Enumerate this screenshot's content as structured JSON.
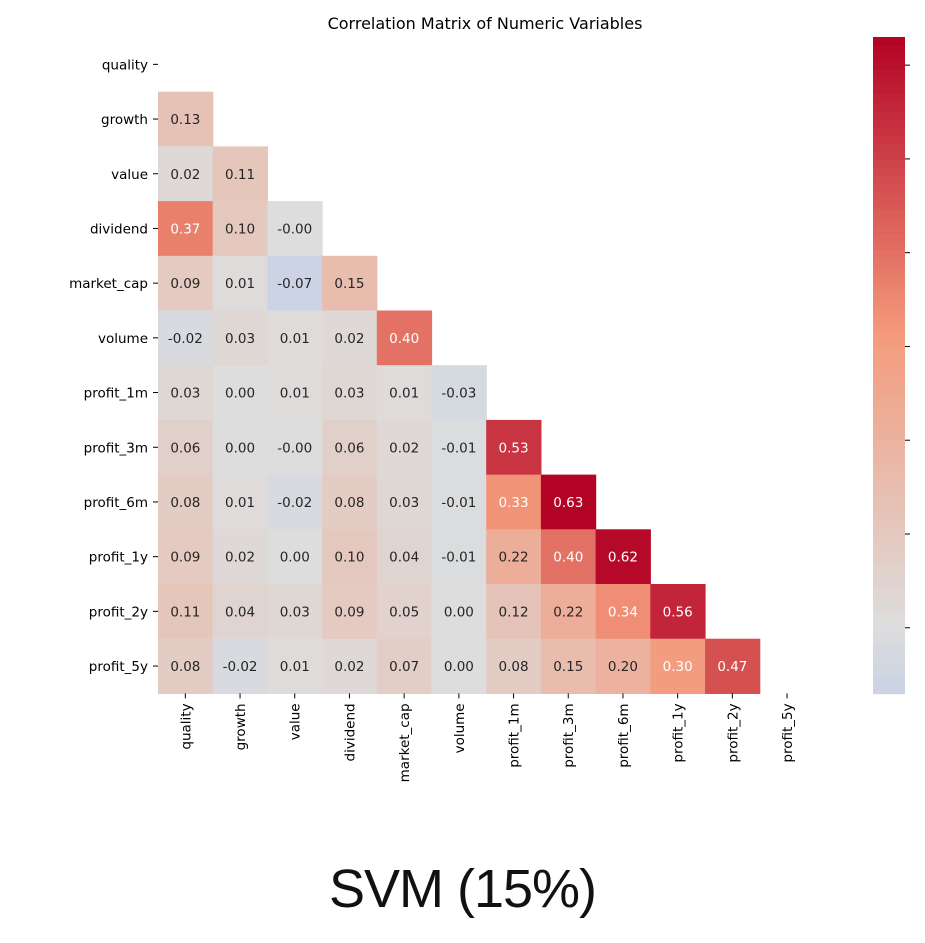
{
  "caption": "SVM (15%)",
  "chart_data": {
    "type": "heatmap",
    "title": "Correlation Matrix of Numeric Variables",
    "xlabel": "",
    "ylabel": "",
    "mask": "upper-triangle-and-diagonal",
    "colormap": "coolwarm",
    "colorbar": {
      "position": "right"
    },
    "variables": [
      "quality",
      "growth",
      "value",
      "dividend",
      "market_cap",
      "volume",
      "profit_1m",
      "profit_3m",
      "profit_6m",
      "profit_1y",
      "profit_2y",
      "profit_5y"
    ],
    "values": [
      [],
      [
        "0.13"
      ],
      [
        "0.02",
        "0.11"
      ],
      [
        "0.37",
        "0.10",
        "-0.00"
      ],
      [
        "0.09",
        "0.01",
        "-0.07",
        "0.15"
      ],
      [
        "-0.02",
        "0.03",
        "0.01",
        "0.02",
        "0.40"
      ],
      [
        "0.03",
        "0.00",
        "0.01",
        "0.03",
        "0.01",
        "-0.03"
      ],
      [
        "0.06",
        "0.00",
        "-0.00",
        "0.06",
        "0.02",
        "-0.01",
        "0.53"
      ],
      [
        "0.08",
        "0.01",
        "-0.02",
        "0.08",
        "0.03",
        "-0.01",
        "0.33",
        "0.63"
      ],
      [
        "0.09",
        "0.02",
        "0.00",
        "0.10",
        "0.04",
        "-0.01",
        "0.22",
        "0.40",
        "0.62"
      ],
      [
        "0.11",
        "0.04",
        "0.03",
        "0.09",
        "0.05",
        "0.00",
        "0.12",
        "0.22",
        "0.34",
        "0.56"
      ],
      [
        "0.08",
        "-0.02",
        "0.01",
        "0.02",
        "0.07",
        "0.00",
        "0.08",
        "0.15",
        "0.20",
        "0.30",
        "0.47"
      ]
    ],
    "color_range": [
      -0.07,
      0.63
    ]
  }
}
